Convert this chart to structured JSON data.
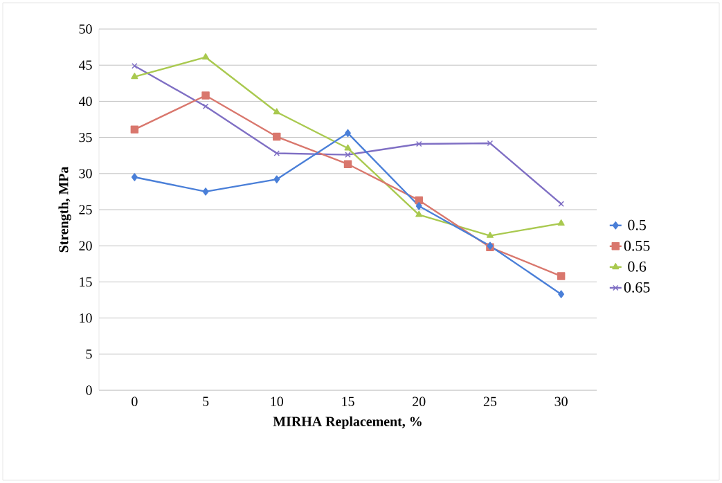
{
  "chart_data": {
    "type": "line",
    "xlabel": "MIRHA Replacement, %",
    "ylabel": "Strength, MPa",
    "categories": [
      "0",
      "5",
      "10",
      "15",
      "20",
      "25",
      "30"
    ],
    "series": [
      {
        "name": "0.5",
        "color": "#4a7fd8",
        "marker": "diamond",
        "values": [
          29.5,
          27.5,
          29.2,
          35.6,
          25.5,
          20.0,
          13.3
        ]
      },
      {
        "name": "0.55",
        "color": "#d9776d",
        "marker": "square",
        "values": [
          36.1,
          40.8,
          35.1,
          31.3,
          26.3,
          19.8,
          15.8
        ]
      },
      {
        "name": "0.6",
        "color": "#a9c94f",
        "marker": "triangle",
        "values": [
          43.4,
          46.1,
          38.5,
          33.5,
          24.3,
          21.4,
          23.1
        ]
      },
      {
        "name": "0.65",
        "color": "#7f6fc4",
        "marker": "cross",
        "values": [
          44.9,
          39.3,
          32.8,
          32.6,
          34.1,
          34.2,
          25.8
        ]
      }
    ],
    "ylim": [
      0,
      50
    ],
    "yticks": [
      0,
      5,
      10,
      15,
      20,
      25,
      30,
      35,
      40,
      45,
      50
    ],
    "grid": "y",
    "legend": "right"
  }
}
